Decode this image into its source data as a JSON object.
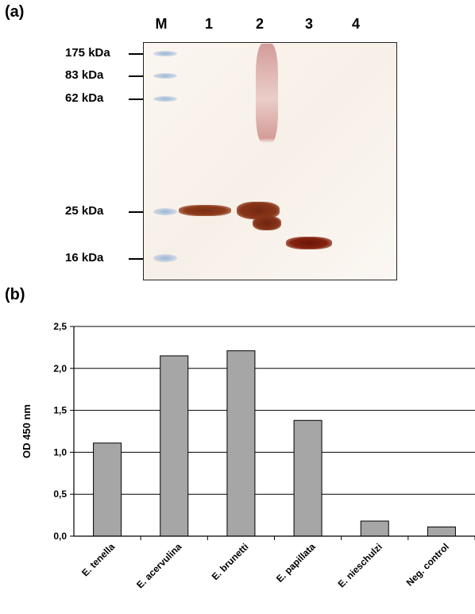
{
  "panels": {
    "a_label": "(a)",
    "b_label": "(b)"
  },
  "blot": {
    "lanes": [
      "M",
      "1",
      "2",
      "3",
      "4"
    ],
    "markers": [
      "175 kDa",
      "83 kDa",
      "62 kDa",
      "25 kDa",
      "16 kDa"
    ]
  },
  "chart_data": {
    "type": "bar",
    "categories": [
      "E. tenella",
      "E. acervulina",
      "E. brunetti",
      "E. papillata",
      "E. nieschulzi",
      "Neg. control"
    ],
    "values": [
      1.11,
      2.15,
      2.21,
      1.38,
      0.18,
      0.11
    ],
    "xlabel": "",
    "ylabel": "OD 450 nm",
    "ylim": [
      0,
      2.5
    ],
    "yticks": [
      "0,0",
      "0,5",
      "1,0",
      "1,5",
      "2,0",
      "2,5"
    ],
    "grid": true,
    "bar_color": "#a6a6a6"
  }
}
